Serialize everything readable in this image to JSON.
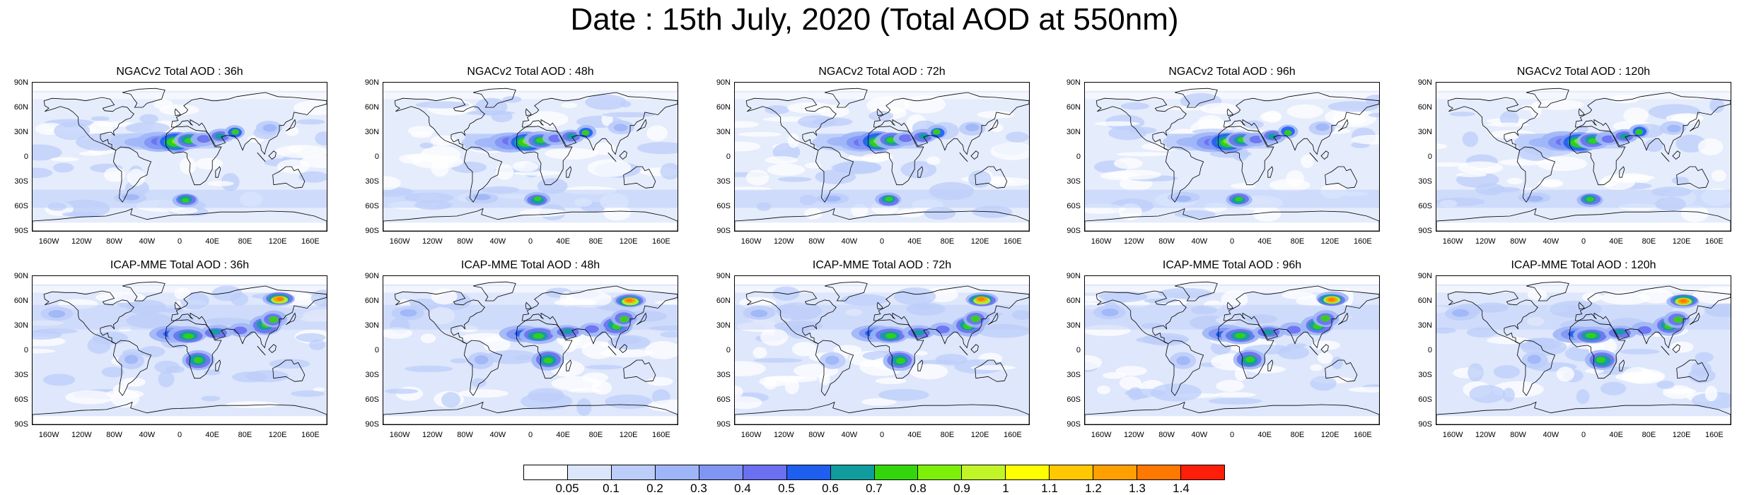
{
  "title": "Date : 15th July, 2020 (Total AOD at 550nm)",
  "lat_labels": [
    "90N",
    "60N",
    "30N",
    "0",
    "30S",
    "60S",
    "90S"
  ],
  "lon_labels": [
    "160W",
    "120W",
    "80W",
    "40W",
    "0",
    "40E",
    "80E",
    "120E",
    "160E"
  ],
  "panels": [
    {
      "title": "NGACv2 Total AOD : 36h",
      "model": "NGACv2",
      "hour": 36
    },
    {
      "title": "NGACv2 Total AOD : 48h",
      "model": "NGACv2",
      "hour": 48
    },
    {
      "title": "NGACv2 Total AOD : 72h",
      "model": "NGACv2",
      "hour": 72
    },
    {
      "title": "NGACv2 Total AOD : 96h",
      "model": "NGACv2",
      "hour": 96
    },
    {
      "title": "NGACv2 Total AOD : 120h",
      "model": "NGACv2",
      "hour": 120
    },
    {
      "title": "ICAP-MME Total AOD : 36h",
      "model": "ICAP-MME",
      "hour": 36
    },
    {
      "title": "ICAP-MME Total AOD : 48h",
      "model": "ICAP-MME",
      "hour": 48
    },
    {
      "title": "ICAP-MME Total AOD : 72h",
      "model": "ICAP-MME",
      "hour": 72
    },
    {
      "title": "ICAP-MME Total AOD : 96h",
      "model": "ICAP-MME",
      "hour": 96
    },
    {
      "title": "ICAP-MME Total AOD : 120h",
      "model": "ICAP-MME",
      "hour": 120
    }
  ],
  "colorbar": {
    "labels": [
      "0.05",
      "0.1",
      "0.2",
      "0.3",
      "0.4",
      "0.5",
      "0.6",
      "0.7",
      "0.8",
      "0.9",
      "1",
      "1.1",
      "1.2",
      "1.3",
      "1.4"
    ],
    "colors": [
      "#ffffff",
      "#dce6fb",
      "#bccdf9",
      "#9eb6f7",
      "#8096f4",
      "#6a70ef",
      "#1e5ff0",
      "#119d9d",
      "#35d50d",
      "#7df00a",
      "#c2f528",
      "#ffff00",
      "#ffc800",
      "#ffa000",
      "#ff7800",
      "#ff1e0a"
    ]
  },
  "chart_data": {
    "type": "heatmap",
    "title": "Date : 15th July, 2020 (Total AOD at 550nm)",
    "x": [
      "160W",
      "120W",
      "80W",
      "40W",
      "0",
      "40E",
      "80E",
      "120E",
      "160E"
    ],
    "y": [
      "90N",
      "60N",
      "30N",
      "0",
      "30S",
      "60S",
      "90S"
    ],
    "levels": [
      0.05,
      0.1,
      0.2,
      0.3,
      0.4,
      0.5,
      0.6,
      0.7,
      0.8,
      0.9,
      1,
      1.1,
      1.2,
      1.3,
      1.4
    ],
    "legend_position": "bottom",
    "grid": false
  }
}
